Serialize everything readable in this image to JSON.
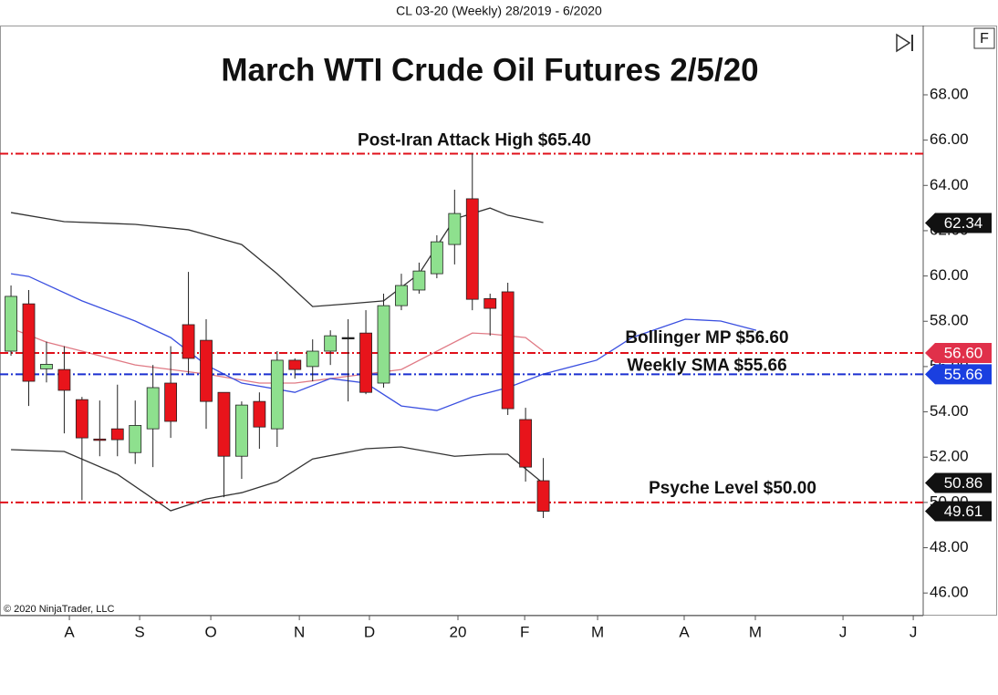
{
  "header": "CL 03-20 (Weekly)  28/2019 - 6/2020",
  "credit": "© 2020 NinjaTrader, LLC",
  "button_label": "F",
  "chart_data": {
    "type": "candlestick",
    "title": "March WTI Crude Oil Futures 2/5/20",
    "up_color": "#8ee08e",
    "down_color": "#e8141b",
    "open": [
      56.68,
      58.77,
      55.9,
      55.87,
      54.54,
      52.8,
      53.25,
      52.2,
      53.25,
      55.27,
      57.85,
      57.16,
      54.86,
      52.04,
      54.46,
      53.25,
      56.28,
      56.0,
      56.68,
      57.28,
      57.48,
      55.27,
      58.69,
      59.38,
      60.1,
      61.39,
      63.41,
      59.0,
      59.3,
      53.66,
      50.96
    ],
    "high": [
      59.58,
      59.38,
      57.1,
      56.9,
      54.66,
      54.5,
      55.2,
      54.5,
      56.07,
      56.9,
      60.18,
      58.09,
      54.86,
      54.46,
      54.86,
      56.68,
      56.36,
      57.2,
      57.6,
      58.09,
      58.49,
      59.22,
      60.1,
      60.59,
      61.8,
      63.81,
      65.4,
      59.22,
      59.7,
      54.18,
      51.96
    ],
    "low": [
      56.48,
      54.26,
      55.3,
      53.05,
      50.1,
      52.04,
      52.04,
      51.7,
      51.56,
      52.85,
      55.67,
      53.25,
      50.23,
      51.04,
      52.37,
      52.45,
      55.47,
      55.35,
      56.07,
      54.46,
      54.78,
      55.07,
      58.49,
      59.22,
      59.9,
      60.51,
      58.49,
      57.36,
      53.86,
      50.92,
      49.31
    ],
    "close": [
      59.1,
      55.35,
      56.1,
      54.95,
      52.85,
      52.75,
      52.77,
      53.4,
      55.07,
      53.58,
      56.36,
      54.46,
      52.04,
      54.3,
      53.33,
      56.28,
      55.87,
      56.68,
      57.36,
      57.28,
      54.86,
      58.69,
      59.58,
      60.22,
      61.51,
      62.76,
      58.97,
      58.57,
      54.14,
      51.56,
      49.61
    ],
    "lines": [
      {
        "color": "#333333",
        "x": [
          0,
          3,
          7,
          10,
          13,
          15,
          17,
          19,
          21,
          23,
          25,
          27,
          28,
          30
        ],
        "values": [
          62.8,
          62.4,
          62.28,
          62.04,
          61.39,
          60.1,
          58.65,
          58.77,
          58.9,
          60.1,
          62.52,
          63.0,
          62.68,
          62.36
        ]
      },
      {
        "color": "#333333",
        "x": [
          0,
          3,
          6,
          9,
          11,
          13,
          15,
          17,
          20,
          22,
          25,
          27,
          28,
          30
        ],
        "values": [
          52.33,
          52.25,
          51.24,
          49.63,
          50.15,
          50.43,
          50.92,
          51.92,
          52.37,
          52.45,
          52.04,
          52.13,
          52.13,
          50.84
        ]
      },
      {
        "color": "#e07a85",
        "x": [
          0,
          2,
          4,
          7,
          9,
          11,
          14,
          16,
          18,
          20,
          22,
          24,
          26,
          27,
          29,
          30
        ],
        "values": [
          57.69,
          57.08,
          56.68,
          56.07,
          55.87,
          55.67,
          55.27,
          55.27,
          55.47,
          55.67,
          55.87,
          56.68,
          57.48,
          57.44,
          57.28,
          56.68
        ]
      },
      {
        "color": "#3a4fe0",
        "x": [
          0,
          1,
          4,
          7,
          9,
          11,
          13,
          16,
          18,
          20,
          22,
          24,
          26,
          28,
          30,
          33,
          35,
          38,
          40,
          42
        ],
        "values": [
          60.1,
          59.98,
          58.9,
          58.01,
          57.28,
          56.07,
          55.27,
          54.86,
          55.47,
          55.27,
          54.26,
          54.06,
          54.66,
          55.07,
          55.67,
          56.28,
          57.28,
          58.09,
          58.01,
          57.6
        ]
      }
    ],
    "levels": [
      {
        "value": 65.4,
        "color": "#e0101a",
        "label": "Post-Iran Attack High $65.40"
      },
      {
        "value": 56.6,
        "color": "#e0101a",
        "label": "Bollinger MP $56.60"
      },
      {
        "value": 55.66,
        "color": "#1a2fd0",
        "label": "Weekly SMA $55.66"
      },
      {
        "value": 50.0,
        "color": "#e0101a",
        "label": "Psyche Level $50.00"
      }
    ],
    "price_tags": [
      {
        "value": 62.34,
        "label": "62.34",
        "color": "#111111"
      },
      {
        "value": 56.6,
        "label": "56.60",
        "color": "#e0304a"
      },
      {
        "value": 55.66,
        "label": "55.66",
        "color": "#1a3fe0"
      },
      {
        "value": 50.86,
        "label": "50.86",
        "color": "#111111"
      },
      {
        "value": 49.61,
        "label": "49.61",
        "color": "#111111"
      }
    ],
    "xlim": [
      -0.62,
      51.41
    ],
    "xticks": [
      {
        "value": 3.29,
        "label": "A"
      },
      {
        "value": 7.25,
        "label": "S"
      },
      {
        "value": 11.26,
        "label": "O"
      },
      {
        "value": 16.25,
        "label": "N"
      },
      {
        "value": 20.2,
        "label": "D"
      },
      {
        "value": 25.19,
        "label": "20"
      },
      {
        "value": 28.95,
        "label": "F"
      },
      {
        "value": 33.06,
        "label": "M"
      },
      {
        "value": 37.94,
        "label": "A"
      },
      {
        "value": 41.95,
        "label": "M"
      },
      {
        "value": 46.89,
        "label": "J"
      },
      {
        "value": 50.85,
        "label": "J"
      }
    ],
    "ylim": [
      45,
      71.06
    ],
    "yticks": [
      {
        "value": 46,
        "label": "46.00"
      },
      {
        "value": 48,
        "label": "48.00"
      },
      {
        "value": 50,
        "label": "50.00"
      },
      {
        "value": 52,
        "label": "52.00"
      },
      {
        "value": 54,
        "label": "54.00"
      },
      {
        "value": 56,
        "label": "56.00"
      },
      {
        "value": 58,
        "label": "58.00"
      },
      {
        "value": 60,
        "label": "60.00"
      },
      {
        "value": 62,
        "label": "62.00"
      },
      {
        "value": 64,
        "label": "64.00"
      },
      {
        "value": 66,
        "label": "66.00"
      },
      {
        "value": 68,
        "label": "68.00"
      }
    ]
  }
}
